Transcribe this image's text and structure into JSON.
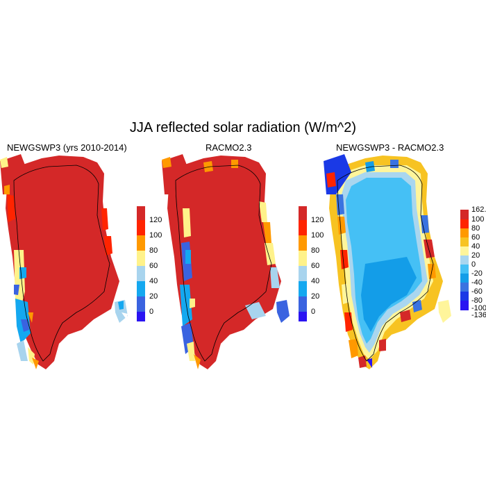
{
  "figure": {
    "title": "JJA reflected solar radiation (W/m^2)"
  },
  "colors": {
    "c0": "#2a14f2",
    "c1": "#3a63e0",
    "c2": "#14a8f0",
    "c3": "#a8d4ee",
    "c4": "#fff28a",
    "c5": "#f7c322",
    "c6": "#ff9900",
    "c7": "#ff2400",
    "c8": "#d42828",
    "d0": "#2a14f2",
    "d1": "#1a39e6",
    "d2": "#3a73e0",
    "d3": "#139de8",
    "d4": "#45c0f5",
    "d5": "#a9d6ef",
    "d6": "#fff59b",
    "d7": "#f7c322",
    "d8": "#ff9900",
    "d9": "#ff2400",
    "d10": "#d42828"
  },
  "panels": [
    {
      "title": "NEWGSWP3 (yrs 2010-2014)",
      "colorbar": {
        "labels": [
          "0",
          "20",
          "40",
          "60",
          "80",
          "100",
          "120"
        ]
      }
    },
    {
      "title": "RACMO2.3",
      "colorbar": {
        "labels": [
          "0",
          "20",
          "40",
          "60",
          "80",
          "100",
          "120"
        ]
      }
    },
    {
      "title": "NEWGSWP3 - RACMO2.3",
      "colorbar": {
        "labels": [
          "-136.",
          "-100",
          "-80",
          "-60",
          "-40",
          "-20",
          "0",
          "20",
          "40",
          "60",
          "80",
          "100",
          "162.3"
        ]
      }
    }
  ]
}
